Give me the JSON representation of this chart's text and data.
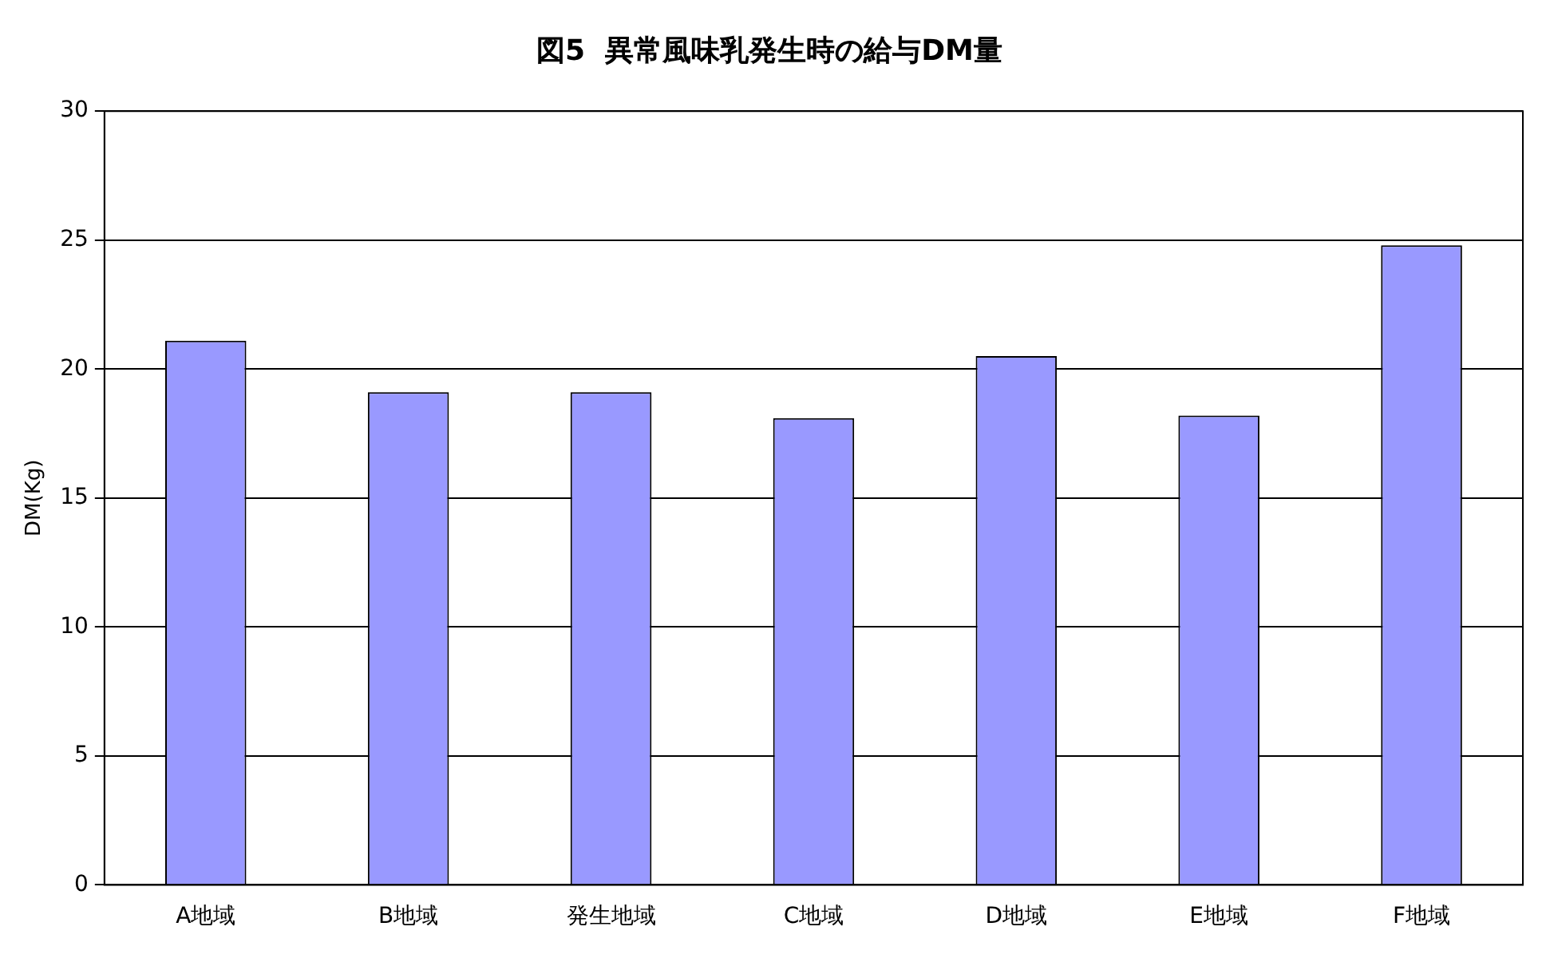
{
  "chart_data": {
    "type": "bar",
    "title": "図5  異常風味乳発生時の給与DM量",
    "ylabel": "DM(Kg)",
    "categories": [
      "A地域",
      "B地域",
      "発生地域",
      "C地域",
      "D地域",
      "E地域",
      "F地域"
    ],
    "values": [
      21.1,
      19.1,
      19.1,
      18.1,
      20.5,
      18.2,
      24.8
    ],
    "color": "#9999ff",
    "ylim": [
      0,
      30
    ],
    "yticks": [
      0,
      5,
      10,
      15,
      20,
      25,
      30
    ],
    "grid": "y",
    "legend": false
  }
}
